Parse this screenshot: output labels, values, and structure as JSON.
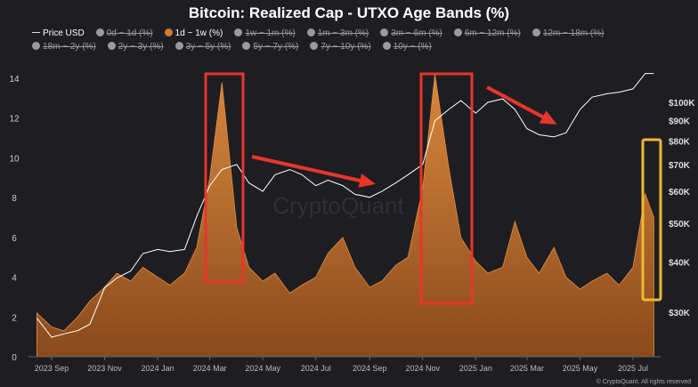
{
  "chart_data": {
    "type": "area",
    "title": "Bitcoin: Realized Cap - UTXO Age Bands (%)",
    "legend": [
      {
        "label": "Price USD",
        "active": true,
        "kind": "line"
      },
      {
        "label": "0d ~ 1d (%)",
        "active": false
      },
      {
        "label": "1d ~ 1w (%)",
        "active": true
      },
      {
        "label": "1w ~ 1m (%)",
        "active": false
      },
      {
        "label": "1m ~ 3m (%)",
        "active": false
      },
      {
        "label": "3m ~ 6m (%)",
        "active": false
      },
      {
        "label": "6m ~ 12m (%)",
        "active": false
      },
      {
        "label": "12m ~ 18m (%)",
        "active": false
      },
      {
        "label": "18m ~ 2y (%)",
        "active": false
      },
      {
        "label": "2y ~ 3y (%)",
        "active": false
      },
      {
        "label": "3y ~ 5y (%)",
        "active": false
      },
      {
        "label": "5y ~ 7y (%)",
        "active": false
      },
      {
        "label": "7y ~ 10y (%)",
        "active": false
      },
      {
        "label": "10y ~ (%)",
        "active": false
      }
    ],
    "x": [
      "2023-08-15",
      "2023-09-01",
      "2023-09-15",
      "2023-10-01",
      "2023-10-15",
      "2023-11-01",
      "2023-11-15",
      "2023-12-01",
      "2023-12-15",
      "2024-01-01",
      "2024-01-15",
      "2024-02-01",
      "2024-02-15",
      "2024-03-01",
      "2024-03-15",
      "2024-04-01",
      "2024-04-15",
      "2024-05-01",
      "2024-05-15",
      "2024-06-01",
      "2024-06-15",
      "2024-07-01",
      "2024-07-15",
      "2024-08-01",
      "2024-08-15",
      "2024-09-01",
      "2024-09-15",
      "2024-10-01",
      "2024-10-15",
      "2024-11-01",
      "2024-11-15",
      "2024-12-01",
      "2024-12-15",
      "2025-01-01",
      "2025-01-15",
      "2025-02-01",
      "2025-02-15",
      "2025-03-01",
      "2025-03-15",
      "2025-04-01",
      "2025-04-15",
      "2025-05-01",
      "2025-05-15",
      "2025-06-01",
      "2025-06-15",
      "2025-07-01",
      "2025-07-15",
      "2025-07-25"
    ],
    "series": [
      {
        "name": "1d ~ 1w (%)",
        "axis": "left",
        "color": "#d07a2e",
        "values": [
          2.2,
          1.5,
          1.3,
          2.0,
          2.8,
          3.5,
          4.2,
          3.8,
          4.5,
          4.0,
          3.6,
          4.2,
          5.5,
          9.0,
          13.8,
          6.5,
          4.5,
          3.8,
          4.2,
          3.2,
          3.6,
          4.0,
          5.2,
          6.0,
          4.5,
          3.5,
          3.8,
          4.6,
          5.0,
          8.5,
          14.2,
          9.5,
          6.0,
          4.8,
          4.2,
          4.5,
          6.8,
          5.0,
          4.2,
          5.5,
          4.0,
          3.4,
          3.8,
          4.2,
          3.6,
          4.5,
          8.2,
          7.0
        ]
      },
      {
        "name": "Price USD",
        "axis": "right",
        "color": "#ffffff",
        "unit": "K USD",
        "values": [
          29,
          26,
          26.5,
          27,
          28,
          34.5,
          36.5,
          38,
          42,
          43,
          42.5,
          43,
          52,
          62,
          68,
          70,
          63,
          60,
          66,
          68,
          66,
          62,
          64,
          62,
          59,
          58,
          60,
          63,
          66,
          70,
          90,
          96,
          101,
          94,
          100,
          102,
          96,
          86,
          83,
          82,
          84,
          96,
          103,
          105,
          106,
          108,
          118,
          118
        ]
      }
    ],
    "x_ticks": [
      "2023 Sep",
      "2023 Nov",
      "2024 Jan",
      "2024 Mar",
      "2024 May",
      "2024 Jul",
      "2024 Sep",
      "2024 Nov",
      "2025 Jan",
      "2025 Mar",
      "2025 May",
      "2025 Jul"
    ],
    "x_tick_dates": [
      "2023-09-01",
      "2023-11-01",
      "2024-01-01",
      "2024-03-01",
      "2024-05-01",
      "2024-07-01",
      "2024-09-01",
      "2024-11-01",
      "2025-01-01",
      "2025-03-01",
      "2025-05-01",
      "2025-07-01"
    ],
    "y_left": {
      "ticks": [
        0,
        2,
        4,
        6,
        8,
        10,
        12,
        14
      ],
      "range": [
        0,
        15
      ]
    },
    "y_right": {
      "scale": "log",
      "ticks": [
        30,
        40,
        50,
        60,
        70,
        80,
        90,
        100
      ],
      "tick_labels": [
        "$30K",
        "$40K",
        "$50K",
        "$60K",
        "$70K",
        "$80K",
        "$90K",
        "$100K"
      ]
    },
    "grid": false,
    "legend_placement": "top",
    "watermark": "CryptoQuant",
    "annotation_colors": {
      "box": "#e8352a",
      "arrow": "#e8352a",
      "highlight": "#f0b830"
    }
  },
  "footer": {
    "copyright": "© CryptoQuant. All rights reserved"
  }
}
